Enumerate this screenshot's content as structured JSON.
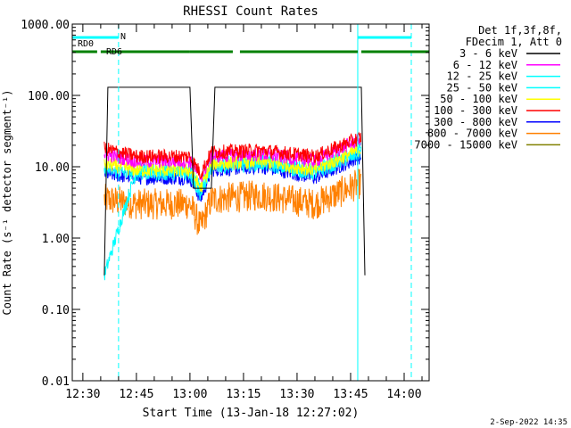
{
  "chart_data": {
    "type": "line",
    "title": "RHESSI Count Rates",
    "xlabel": "Start Time (13-Jan-18 12:27:02)",
    "ylabel": "Count Rate (s⁻¹ detector segment⁻¹)",
    "y_scale": "log",
    "ylim": [
      0.01,
      1000
    ],
    "y_ticks": [
      "0.01",
      "0.10",
      "1.00",
      "10.00",
      "100.00",
      "1000.00"
    ],
    "x_range": [
      "12:27:02",
      "14:07"
    ],
    "x_ticks": [
      "12:30",
      "12:45",
      "13:00",
      "13:15",
      "13:30",
      "13:45",
      "14:00"
    ],
    "legend_header": [
      "Det 1f,3f,8f,",
      "FDecim 1, Att 0"
    ],
    "legend_position": "right",
    "series": [
      {
        "name": "3 - 6 keV",
        "color": "#000000",
        "x": [
          "12:36",
          "12:37",
          "13:00",
          "13:01",
          "13:06",
          "13:07",
          "13:48",
          "13:49"
        ],
        "values": [
          0.3,
          130,
          130,
          5,
          5,
          130,
          130,
          0.3
        ]
      },
      {
        "name": "6 - 12 keV",
        "color": "#ff00ff",
        "x": [
          "12:36",
          "12:45",
          "13:00",
          "13:03",
          "13:06",
          "13:20",
          "13:35",
          "13:48"
        ],
        "values": [
          15,
          12,
          12,
          7,
          14,
          15,
          12,
          25
        ]
      },
      {
        "name": "12 - 25 keV",
        "color": "#00ffff",
        "x": [
          "12:36",
          "12:45",
          "13:00",
          "13:03",
          "13:06",
          "13:20",
          "13:35",
          "13:48"
        ],
        "values": [
          0.3,
          9,
          9,
          5,
          11,
          12,
          9,
          18
        ]
      },
      {
        "name": "25 - 50 keV",
        "color": "#00ffff",
        "x": [
          "12:36",
          "12:45",
          "13:00",
          "13:03",
          "13:06",
          "13:20",
          "13:35",
          "13:48"
        ],
        "values": [
          9,
          8,
          8,
          4,
          10,
          11,
          8,
          16
        ]
      },
      {
        "name": "50 - 100 keV",
        "color": "#ffff00",
        "x": [
          "12:36",
          "12:45",
          "13:00",
          "13:03",
          "13:06",
          "13:20",
          "13:35",
          "13:48"
        ],
        "values": [
          11,
          9,
          9,
          5,
          11,
          12,
          9,
          18
        ]
      },
      {
        "name": "100 - 300 keV",
        "color": "#ff0000",
        "x": [
          "12:36",
          "12:45",
          "13:00",
          "13:03",
          "13:06",
          "13:20",
          "13:35",
          "13:48"
        ],
        "values": [
          18,
          14,
          14,
          8,
          16,
          17,
          14,
          26
        ]
      },
      {
        "name": "300 - 800 keV",
        "color": "#0000ff",
        "x": [
          "12:36",
          "12:45",
          "13:00",
          "13:03",
          "13:06",
          "13:20",
          "13:35",
          "13:48"
        ],
        "values": [
          8,
          7,
          7,
          3.5,
          9,
          10,
          7,
          14
        ]
      },
      {
        "name": "800 - 7000 keV",
        "color": "#ff8000",
        "x": [
          "12:36",
          "12:45",
          "13:00",
          "13:03",
          "13:06",
          "13:20",
          "13:35",
          "13:48"
        ],
        "values": [
          3.5,
          3,
          3,
          1.4,
          3.5,
          4,
          3,
          6
        ]
      },
      {
        "name": "7000 - 15000 keV",
        "color": "#808000",
        "x": [],
        "values": []
      }
    ],
    "attenuator_bars": [
      {
        "label": "RD0",
        "color": "#00ffff",
        "segments": [
          [
            "12:27:02",
            "12:40"
          ],
          [
            "13:47",
            "14:02"
          ]
        ]
      },
      {
        "label": "N",
        "color": "#00ffff",
        "segments": []
      },
      {
        "label": "RD6",
        "color": "#008000",
        "segments": [
          [
            "12:27:02",
            "12:34"
          ],
          [
            "12:35",
            "13:00"
          ],
          [
            "13:00",
            "13:12"
          ],
          [
            "13:14",
            "13:47"
          ],
          [
            "13:48",
            "14:07"
          ]
        ]
      }
    ],
    "vertical_markers": [
      {
        "x": "12:27:02",
        "color": "#00ffff",
        "style": "solid"
      },
      {
        "x": "12:40",
        "color": "#00ffff",
        "style": "dashed"
      },
      {
        "x": "13:47",
        "color": "#00ffff",
        "style": "solid"
      },
      {
        "x": "14:02",
        "color": "#00ffff",
        "style": "dashed"
      }
    ],
    "grid": false
  },
  "footer": {
    "date": "2-Sep-2022 14:35"
  }
}
